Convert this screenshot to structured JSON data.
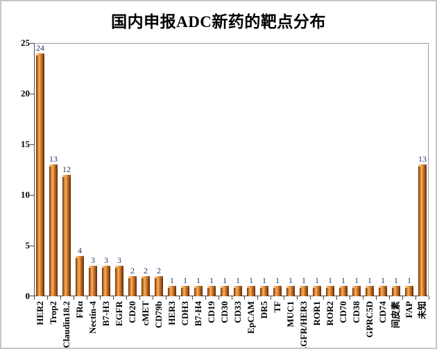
{
  "chart_data": {
    "type": "bar",
    "title": "国内申报ADC新药的靶点分布",
    "categories": [
      "HER2",
      "Trop2",
      "Claudin18.2",
      "FRα",
      "Nectin-4",
      "B7-H3",
      "EGFR",
      "CD20",
      "cMET",
      "CD79b",
      "HER3",
      "CDH3",
      "B7-H4",
      "CD19",
      "CD30",
      "CD33",
      "EpCAM",
      "DR5",
      "TF",
      "MUC1",
      "EGFR/HER3",
      "ROR1",
      "ROR2",
      "CD70",
      "CD38",
      "GPRC5D",
      "CD74",
      "间皮素",
      "FAP",
      "未知"
    ],
    "values": [
      24,
      13,
      12,
      4,
      3,
      3,
      3,
      2,
      2,
      2,
      1,
      1,
      1,
      1,
      1,
      1,
      1,
      1,
      1,
      1,
      1,
      1,
      1,
      1,
      1,
      1,
      1,
      1,
      1,
      13
    ],
    "xlabel": "",
    "ylabel": "",
    "ylim": [
      0,
      25
    ],
    "yticks": [
      0,
      5,
      10,
      15,
      20,
      25
    ],
    "grid": "off",
    "legend": "none",
    "colors": {
      "bar_main": "#D2722A",
      "bar_edge_dark": "#5e2f0d",
      "bar_highlight": "#f5b066",
      "value_label": "#203864",
      "axis_line": "#4a4a4a",
      "plot_border": "#9b9b9b",
      "outer_border": "#c6c6c6",
      "text": "#000000"
    }
  }
}
